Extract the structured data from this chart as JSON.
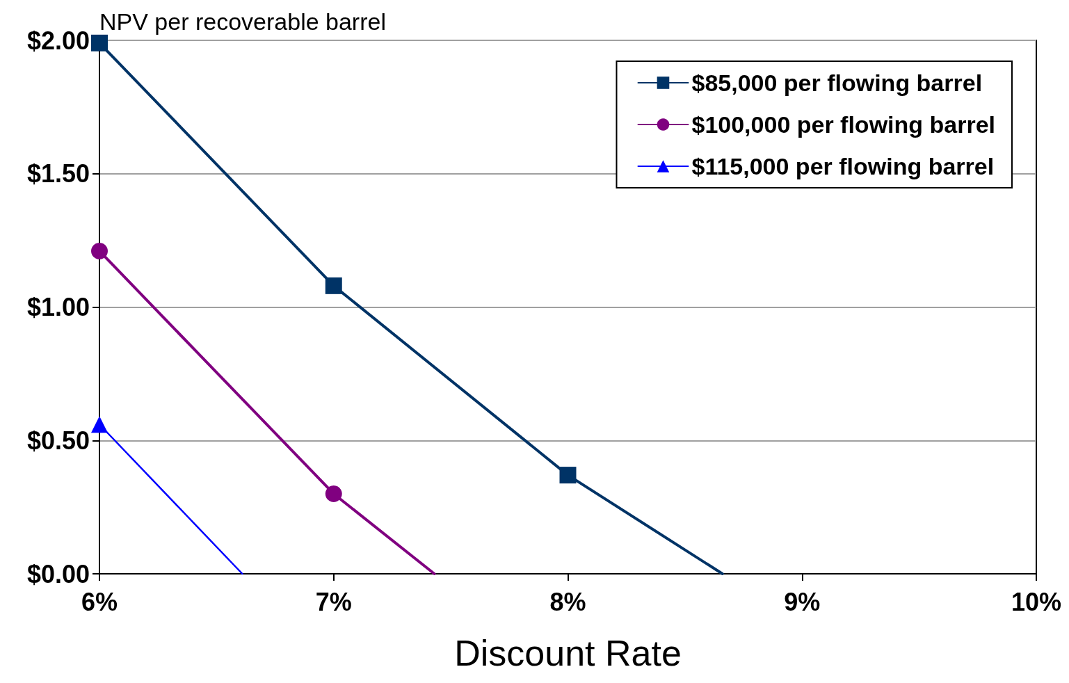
{
  "chart_data": {
    "type": "line",
    "ylabel": "NPV per recoverable barrel",
    "xlabel": "Discount Rate",
    "xlim": [
      6,
      10
    ],
    "xticks": [
      {
        "value": 6,
        "label": "6%"
      },
      {
        "value": 7,
        "label": "7%"
      },
      {
        "value": 8,
        "label": "8%"
      },
      {
        "value": 9,
        "label": "9%"
      },
      {
        "value": 10,
        "label": "10%"
      }
    ],
    "ylim": [
      0,
      2
    ],
    "yticks": [
      {
        "value": 0,
        "label": "$0.00"
      },
      {
        "value": 0.5,
        "label": "$0.50"
      },
      {
        "value": 1,
        "label": "$1.00"
      },
      {
        "value": 1.5,
        "label": "$1.50"
      },
      {
        "value": 2,
        "label": "$2.00"
      }
    ],
    "grid": "y",
    "legend": "top right",
    "line_style": "solid",
    "series": [
      {
        "name": "$85,000 per flowing barrel",
        "color": "#003366",
        "marker": "square",
        "x": [
          6,
          7,
          8,
          8.66
        ],
        "values": [
          1.99,
          1.08,
          0.37,
          0
        ]
      },
      {
        "name": "$100,000 per flowing barrel",
        "color": "#800080",
        "marker": "circle",
        "x": [
          6,
          7,
          7.43
        ],
        "values": [
          1.21,
          0.3,
          0
        ]
      },
      {
        "name": "$115,000 per flowing barrel",
        "color": "#0000ff",
        "marker": "triangle",
        "x": [
          6,
          6.61
        ],
        "values": [
          0.56,
          0
        ]
      }
    ]
  }
}
